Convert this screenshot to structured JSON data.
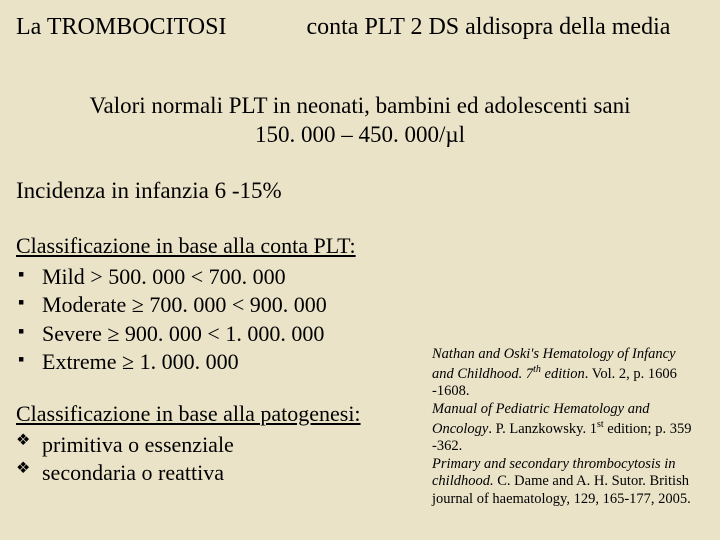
{
  "header": {
    "left": "La TROMBOCITOSI",
    "right": "conta PLT 2 DS aldisopra della media"
  },
  "normal_values": {
    "line1": "Valori normali PLT in neonati, bambini ed adolescenti sani",
    "line2": "150. 000 – 450. 000/µl"
  },
  "incidence": "Incidenza in infanzia 6 -15%",
  "class_plt": {
    "title": "Classificazione in base alla conta PLT:",
    "items": [
      {
        "label": "Mild",
        "range": "  > 500. 000  < 700. 000"
      },
      {
        "label": "Moderate",
        "range": "  ≥ 700. 000  < 900. 000"
      },
      {
        "label": "Severe",
        "range": "  ≥ 900. 000  < 1. 000. 000"
      },
      {
        "label": "Extreme",
        "range": "  ≥ 1. 000. 000"
      }
    ]
  },
  "class_pat": {
    "title": "Classificazione in base alla patogenesi:",
    "items": [
      "primitiva o essenziale",
      "secondaria o reattiva"
    ]
  },
  "refs": {
    "r1a": "Nathan and Oski's Hematology of Infancy and  Childhood",
    "r1b": ". 7",
    "r1c": "th",
    "r1d": " edition",
    "r1e": ". Vol. 2, p. 1606 -1608.",
    "r2a": "Manual of  Pediatric Hematology and Oncology",
    "r2b": ".  P. Lanzkowsky. 1",
    "r2c": "st",
    "r2d": " edition; p. 359 -362.",
    "r3a": "Primary and secondary thrombocytosis in childhood.",
    "r3b": " C. Dame  and A. H. Sutor. British journal of haematology, 129, 165-177, 2005."
  },
  "colors": {
    "background": "#eae3c8",
    "text": "#000000"
  }
}
